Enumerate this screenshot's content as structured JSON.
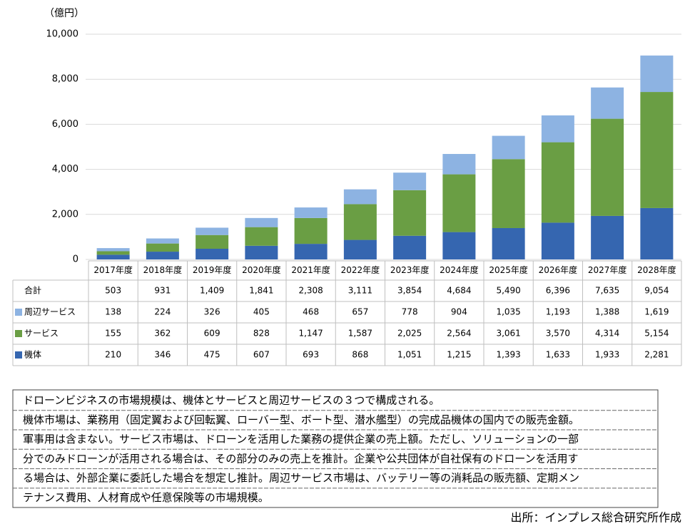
{
  "chart_data": {
    "type": "stacked-bar",
    "y_unit": "（億円）",
    "categories": [
      "2017年度",
      "2018年度",
      "2019年度",
      "2020年度",
      "2021年度",
      "2022年度",
      "2023年度",
      "2024年度",
      "2025年度",
      "2026年度",
      "2027年度",
      "2028年度"
    ],
    "ylim": [
      0,
      10000
    ],
    "yticks": [
      0,
      {
        "value": 2000,
        "label": "2,000"
      },
      {
        "value": 4000,
        "label": "4,000"
      },
      {
        "value": 6000,
        "label": "6,000"
      },
      {
        "value": 8000,
        "label": "8,000"
      },
      {
        "value": 10000,
        "label": "10,000"
      }
    ],
    "grid": true,
    "totals": {
      "name": "合計",
      "values": [
        503,
        931,
        1409,
        1841,
        2308,
        3111,
        3854,
        4684,
        5490,
        6396,
        7635,
        9054
      ],
      "value_labels": [
        "503",
        "931",
        "1,409",
        "1,841",
        "2,308",
        "3,111",
        "3,854",
        "4,684",
        "5,490",
        "6,396",
        "7,635",
        "9,054"
      ]
    },
    "series": [
      {
        "name": "周辺サービス",
        "color": "#8db3e2",
        "values": [
          138,
          224,
          326,
          405,
          468,
          657,
          778,
          904,
          1035,
          1193,
          1388,
          1619
        ],
        "value_labels": [
          "138",
          "224",
          "326",
          "405",
          "468",
          "657",
          "778",
          "904",
          "1,035",
          "1,193",
          "1,388",
          "1,619"
        ]
      },
      {
        "name": "サービス",
        "color": "#6a9e44",
        "values": [
          155,
          362,
          609,
          828,
          1147,
          1587,
          2025,
          2564,
          3061,
          3570,
          4314,
          5154
        ],
        "value_labels": [
          "155",
          "362",
          "609",
          "828",
          "1,147",
          "1,587",
          "2,025",
          "2,564",
          "3,061",
          "3,570",
          "4,314",
          "5,154"
        ]
      },
      {
        "name": "機体",
        "color": "#3566b0",
        "values": [
          210,
          346,
          475,
          607,
          693,
          868,
          1051,
          1215,
          1393,
          1633,
          1933,
          2281
        ],
        "value_labels": [
          "210",
          "346",
          "475",
          "607",
          "693",
          "868",
          "1,051",
          "1,215",
          "1,393",
          "1,633",
          "1,933",
          "2,281"
        ]
      }
    ]
  },
  "note": {
    "lines": [
      "ドローンビジネスの市場規模は、機体とサービスと周辺サービスの３つで構成される。",
      "機体市場は、業務用（固定翼および回転翼、ローバー型、ボート型、潜水艦型）の完成品機体の国内での販売金額。",
      "軍事用は含まない。サービス市場は、ドローンを活用した業務の提供企業の売上額。ただし、ソリューションの一部",
      "分でのみドローンが活用される場合は、その部分のみの売上を推計。企業や公共団体が自社保有のドローンを活用す",
      "る場合は、外部企業に委託した場合を想定し推計。周辺サービス市場は、バッテリー等の消耗品の販売額、定期メン",
      "テナンス費用、人材育成や任意保険等の市場規模。"
    ]
  },
  "source": "出所：インプレス総合研究所作成"
}
